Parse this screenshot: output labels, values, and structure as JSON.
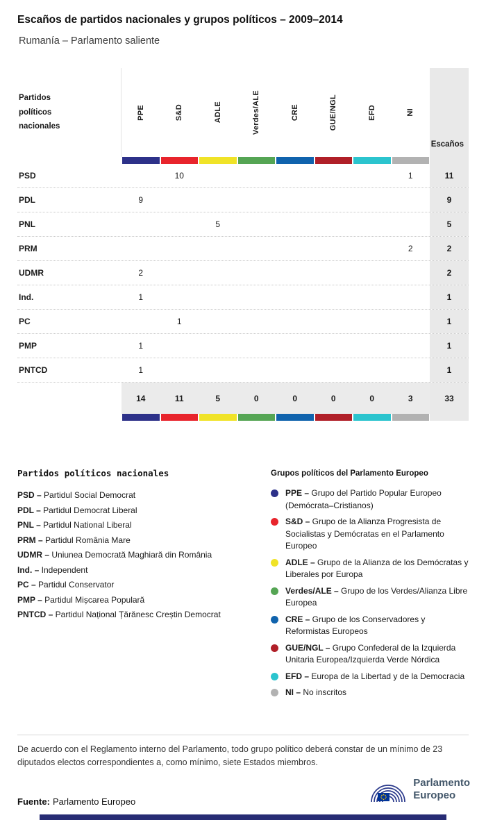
{
  "page": {
    "title": "Escaños de partidos nacionales y grupos políticos – 2009–2014",
    "subtitle": "Rumanía – Parlamento saliente"
  },
  "table": {
    "corner_label": "Partidos políticos nacionales",
    "seats_label": "Escaños",
    "groups": [
      {
        "id": "PPE",
        "label": "PPE",
        "color": "#2d3189"
      },
      {
        "id": "SD",
        "label": "S&D",
        "color": "#e8242c"
      },
      {
        "id": "ADLE",
        "label": "ADLE",
        "color": "#f0e327"
      },
      {
        "id": "VerdesALE",
        "label": "Verdes/ALE",
        "color": "#55a554"
      },
      {
        "id": "CRE",
        "label": "CRE",
        "color": "#1063ad"
      },
      {
        "id": "GUENGL",
        "label": "GUE/NGL",
        "color": "#b01f28"
      },
      {
        "id": "EFD",
        "label": "EFD",
        "color": "#2bc4ce"
      },
      {
        "id": "NI",
        "label": "NI",
        "color": "#b2b2b2"
      }
    ],
    "rows": [
      {
        "party": "PSD",
        "values": [
          "",
          "10",
          "",
          "",
          "",
          "",
          "",
          "1"
        ],
        "total": "11"
      },
      {
        "party": "PDL",
        "values": [
          "9",
          "",
          "",
          "",
          "",
          "",
          "",
          ""
        ],
        "total": "9"
      },
      {
        "party": "PNL",
        "values": [
          "",
          "",
          "5",
          "",
          "",
          "",
          "",
          ""
        ],
        "total": "5"
      },
      {
        "party": "PRM",
        "values": [
          "",
          "",
          "",
          "",
          "",
          "",
          "",
          "2"
        ],
        "total": "2"
      },
      {
        "party": "UDMR",
        "values": [
          "2",
          "",
          "",
          "",
          "",
          "",
          "",
          ""
        ],
        "total": "2"
      },
      {
        "party": "Ind.",
        "values": [
          "1",
          "",
          "",
          "",
          "",
          "",
          "",
          ""
        ],
        "total": "1"
      },
      {
        "party": "PC",
        "values": [
          "",
          "1",
          "",
          "",
          "",
          "",
          "",
          ""
        ],
        "total": "1"
      },
      {
        "party": "PMP",
        "values": [
          "1",
          "",
          "",
          "",
          "",
          "",
          "",
          ""
        ],
        "total": "1"
      },
      {
        "party": "PNTCD",
        "values": [
          "1",
          "",
          "",
          "",
          "",
          "",
          "",
          ""
        ],
        "total": "1"
      }
    ],
    "totals": {
      "values": [
        "14",
        "11",
        "5",
        "0",
        "0",
        "0",
        "0",
        "3"
      ],
      "total": "33"
    }
  },
  "legend_parties": {
    "heading": "Partidos políticos nacionales",
    "items": [
      {
        "abbr": "PSD",
        "name": "Partidul Social Democrat"
      },
      {
        "abbr": "PDL",
        "name": "Partidul Democrat Liberal"
      },
      {
        "abbr": "PNL",
        "name": "Partidul National Liberal"
      },
      {
        "abbr": "PRM",
        "name": "Partidul România Mare"
      },
      {
        "abbr": "UDMR",
        "name": "Uniunea Democrată Maghiară din România"
      },
      {
        "abbr": "Ind.",
        "name": "Independent"
      },
      {
        "abbr": "PC",
        "name": "Partidul Conservator"
      },
      {
        "abbr": "PMP",
        "name": "Partidul Mișcarea Populară"
      },
      {
        "abbr": "PNTCD",
        "name": "Partidul Național Țărănesc Creștin Democrat"
      }
    ]
  },
  "legend_groups": {
    "heading": "Grupos políticos del Parlamento Europeo",
    "items": [
      {
        "id": "PPE",
        "abbr": "PPE",
        "color": "#2d3189",
        "desc": "Grupo del Partido Popular Europeo (Demócrata–Cristianos)"
      },
      {
        "id": "SD",
        "abbr": "S&D",
        "color": "#e8242c",
        "desc": "Grupo de la Alianza Progresista de Socialistas y Demócratas en el Parlamento Europeo"
      },
      {
        "id": "ADLE",
        "abbr": "ADLE",
        "color": "#f0e327",
        "desc": "Grupo de la Alianza de los Demócratas y Liberales por Europa"
      },
      {
        "id": "VerdesALE",
        "abbr": "Verdes/ALE",
        "color": "#55a554",
        "desc": "Grupo de los Verdes/Alianza Libre Europea"
      },
      {
        "id": "CRE",
        "abbr": "CRE",
        "color": "#1063ad",
        "desc": "Grupo de los Conservadores y Reformistas Europeos"
      },
      {
        "id": "GUENGL",
        "abbr": "GUE/NGL",
        "color": "#b01f28",
        "desc": "Grupo Confederal de la Izquierda Unitaria Europea/Izquierda Verde Nórdica"
      },
      {
        "id": "EFD",
        "abbr": "EFD",
        "color": "#2bc4ce",
        "desc": "Europa de la Libertad y de la Democracia"
      },
      {
        "id": "NI",
        "abbr": "NI",
        "color": "#b2b2b2",
        "desc": "No inscritos"
      }
    ]
  },
  "footer": {
    "note": "De acuerdo con el Reglamento interno del Parlamento, todo grupo político deberá constar de un mínimo de 23 diputados electos correspondientes a, como mínimo, siete Estados miembros.",
    "source_label": "Fuente:",
    "source_value": "Parlamento Europeo",
    "logo_line1": "Parlamento",
    "logo_line2": "Europeo"
  },
  "chart_data": {
    "type": "table",
    "title": "Escaños de partidos nacionales y grupos políticos – 2009–2014",
    "subtitle": "Rumanía – Parlamento saliente",
    "columns": [
      "PPE",
      "S&D",
      "ADLE",
      "Verdes/ALE",
      "CRE",
      "GUE/NGL",
      "EFD",
      "NI"
    ],
    "rows": [
      {
        "party": "PSD",
        "values": [
          null,
          10,
          null,
          null,
          null,
          null,
          null,
          1
        ],
        "total": 11
      },
      {
        "party": "PDL",
        "values": [
          9,
          null,
          null,
          null,
          null,
          null,
          null,
          null
        ],
        "total": 9
      },
      {
        "party": "PNL",
        "values": [
          null,
          null,
          5,
          null,
          null,
          null,
          null,
          null
        ],
        "total": 5
      },
      {
        "party": "PRM",
        "values": [
          null,
          null,
          null,
          null,
          null,
          null,
          null,
          2
        ],
        "total": 2
      },
      {
        "party": "UDMR",
        "values": [
          2,
          null,
          null,
          null,
          null,
          null,
          null,
          null
        ],
        "total": 2
      },
      {
        "party": "Ind.",
        "values": [
          1,
          null,
          null,
          null,
          null,
          null,
          null,
          null
        ],
        "total": 1
      },
      {
        "party": "PC",
        "values": [
          null,
          1,
          null,
          null,
          null,
          null,
          null,
          null
        ],
        "total": 1
      },
      {
        "party": "PMP",
        "values": [
          1,
          null,
          null,
          null,
          null,
          null,
          null,
          null
        ],
        "total": 1
      },
      {
        "party": "PNTCD",
        "values": [
          1,
          null,
          null,
          null,
          null,
          null,
          null,
          null
        ],
        "total": 1
      }
    ],
    "totals": {
      "values": [
        14,
        11,
        5,
        0,
        0,
        0,
        0,
        3
      ],
      "total": 33
    }
  }
}
